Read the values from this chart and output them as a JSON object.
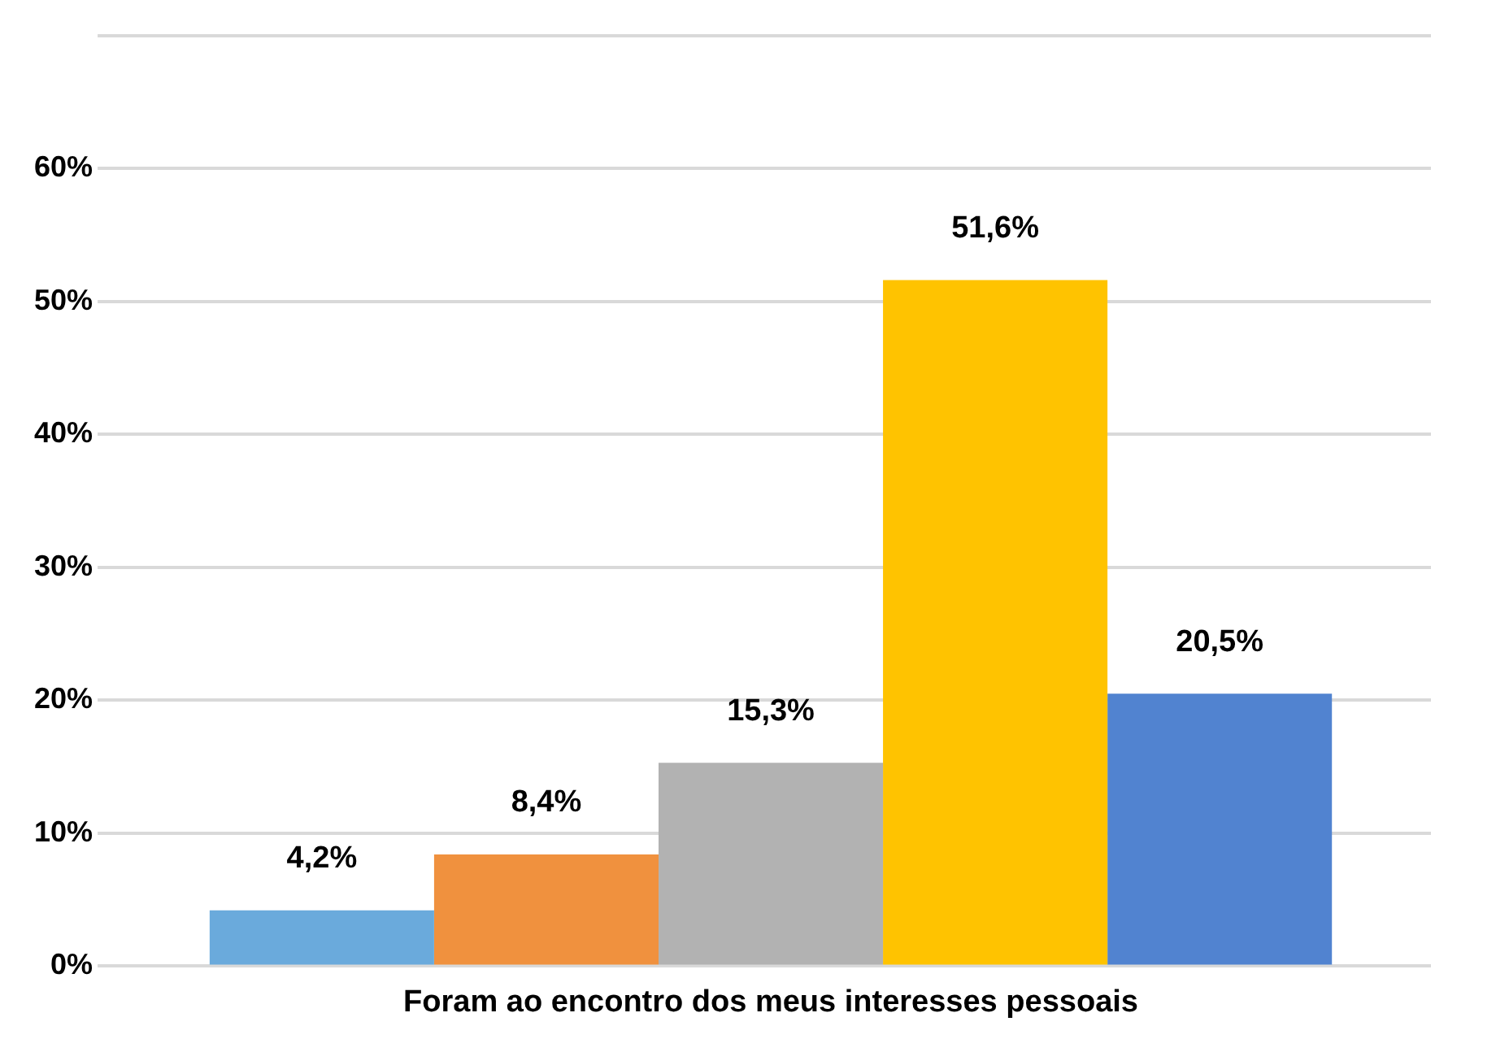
{
  "chart_data": {
    "type": "bar",
    "categories": [
      "Foram ao encontro dos meus interesses pessoais"
    ],
    "series": [
      {
        "color": "#6aaadc",
        "values": [
          4.2
        ],
        "value_labels": [
          "4,2%"
        ]
      },
      {
        "color": "#f0913e",
        "values": [
          8.4
        ],
        "value_labels": [
          "8,4%"
        ]
      },
      {
        "color": "#b2b2b2",
        "values": [
          15.3
        ],
        "value_labels": [
          "15,3%"
        ]
      },
      {
        "color": "#ffc300",
        "values": [
          51.6
        ],
        "value_labels": [
          "51,6%"
        ]
      },
      {
        "color": "#5183d0",
        "values": [
          20.5
        ],
        "value_labels": [
          "20,5%"
        ]
      }
    ],
    "ylim": [
      0,
      70
    ],
    "yticks": [
      {
        "value": 0,
        "label": "0%"
      },
      {
        "value": 10,
        "label": "10%"
      },
      {
        "value": 20,
        "label": "20%"
      },
      {
        "value": 30,
        "label": "30%"
      },
      {
        "value": 40,
        "label": "40%"
      },
      {
        "value": 50,
        "label": "50%"
      },
      {
        "value": 60,
        "label": "60%"
      },
      {
        "value": 70,
        "label": null
      }
    ],
    "grid": "y",
    "legend": false
  }
}
